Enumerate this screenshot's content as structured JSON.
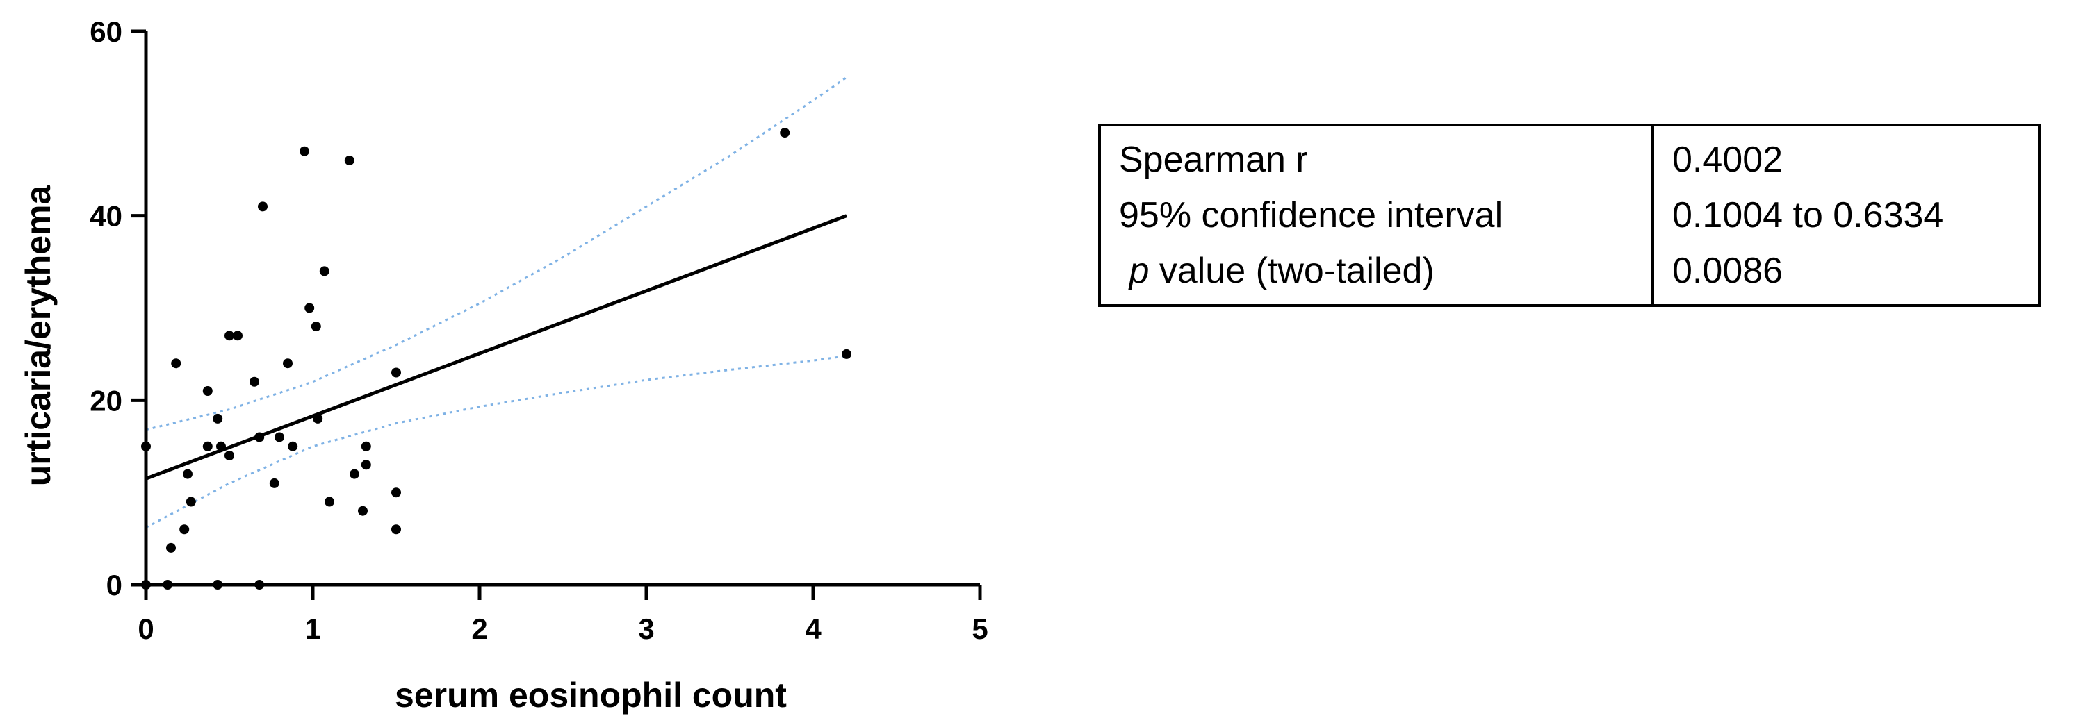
{
  "chart_data": {
    "type": "scatter",
    "title": "",
    "xlabel": "serum eosinophil count",
    "ylabel": "urticaria/erythema",
    "xlim": [
      0,
      5
    ],
    "ylim": [
      0,
      60
    ],
    "x_ticks": [
      "0",
      "1",
      "2",
      "3",
      "4",
      "5"
    ],
    "y_ticks": [
      "0",
      "20",
      "40",
      "60"
    ],
    "grid": false,
    "points": [
      {
        "x": 0.0,
        "y": 15
      },
      {
        "x": 0.0,
        "y": 0
      },
      {
        "x": 0.13,
        "y": 0
      },
      {
        "x": 0.15,
        "y": 4
      },
      {
        "x": 0.18,
        "y": 24
      },
      {
        "x": 0.23,
        "y": 6
      },
      {
        "x": 0.25,
        "y": 12
      },
      {
        "x": 0.27,
        "y": 9
      },
      {
        "x": 0.37,
        "y": 21
      },
      {
        "x": 0.37,
        "y": 15
      },
      {
        "x": 0.43,
        "y": 18
      },
      {
        "x": 0.43,
        "y": 0
      },
      {
        "x": 0.45,
        "y": 15
      },
      {
        "x": 0.5,
        "y": 14
      },
      {
        "x": 0.5,
        "y": 27
      },
      {
        "x": 0.55,
        "y": 27
      },
      {
        "x": 0.65,
        "y": 22
      },
      {
        "x": 0.68,
        "y": 16
      },
      {
        "x": 0.68,
        "y": 0
      },
      {
        "x": 0.7,
        "y": 41
      },
      {
        "x": 0.77,
        "y": 11
      },
      {
        "x": 0.8,
        "y": 16
      },
      {
        "x": 0.85,
        "y": 24
      },
      {
        "x": 0.88,
        "y": 15
      },
      {
        "x": 0.95,
        "y": 47
      },
      {
        "x": 0.98,
        "y": 30
      },
      {
        "x": 1.02,
        "y": 28
      },
      {
        "x": 1.03,
        "y": 18
      },
      {
        "x": 1.07,
        "y": 34
      },
      {
        "x": 1.1,
        "y": 9
      },
      {
        "x": 1.22,
        "y": 46
      },
      {
        "x": 1.25,
        "y": 12
      },
      {
        "x": 1.3,
        "y": 8
      },
      {
        "x": 1.32,
        "y": 15
      },
      {
        "x": 1.32,
        "y": 13
      },
      {
        "x": 1.5,
        "y": 23
      },
      {
        "x": 1.5,
        "y": 10
      },
      {
        "x": 1.5,
        "y": 6
      },
      {
        "x": 3.83,
        "y": 49
      },
      {
        "x": 4.2,
        "y": 25
      }
    ],
    "regression_line": [
      {
        "x": 0.0,
        "y": 11.5
      },
      {
        "x": 4.2,
        "y": 40
      }
    ],
    "confidence_band_upper": [
      {
        "x": 0.0,
        "y": 16.8
      },
      {
        "x": 0.5,
        "y": 19.0
      },
      {
        "x": 1.0,
        "y": 22.0
      },
      {
        "x": 1.5,
        "y": 26.0
      },
      {
        "x": 2.0,
        "y": 30.5
      },
      {
        "x": 2.5,
        "y": 35.5
      },
      {
        "x": 3.0,
        "y": 41.0
      },
      {
        "x": 3.5,
        "y": 46.5
      },
      {
        "x": 4.0,
        "y": 52.5
      },
      {
        "x": 4.2,
        "y": 55.0
      }
    ],
    "confidence_band_lower": [
      {
        "x": 0.0,
        "y": 6.2
      },
      {
        "x": 0.5,
        "y": 11.0
      },
      {
        "x": 1.0,
        "y": 15.0
      },
      {
        "x": 1.5,
        "y": 17.5
      },
      {
        "x": 2.0,
        "y": 19.3
      },
      {
        "x": 2.5,
        "y": 20.8
      },
      {
        "x": 3.0,
        "y": 22.2
      },
      {
        "x": 3.5,
        "y": 23.3
      },
      {
        "x": 4.0,
        "y": 24.3
      },
      {
        "x": 4.2,
        "y": 24.8
      }
    ],
    "colors": {
      "points": "#000000",
      "regression_line": "#000000",
      "confidence_band": "#7fb2e5"
    }
  },
  "stats_table": {
    "rows": [
      {
        "label": "Spearman r",
        "value": "0.4002"
      },
      {
        "label": "95% confidence interval",
        "value": "0.1004 to 0.6334"
      },
      {
        "label_italic": "p",
        "label": " value (two-tailed)",
        "value": "0.0086"
      }
    ]
  }
}
